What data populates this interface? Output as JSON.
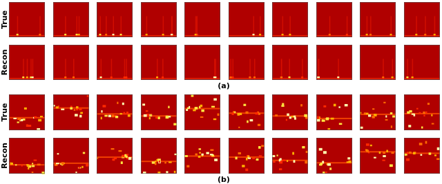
{
  "panels": [
    {
      "caption": "(a)",
      "rows": [
        "True",
        "Recon"
      ]
    },
    {
      "caption": "(b)",
      "rows": [
        "True",
        "Recon"
      ]
    }
  ]
}
